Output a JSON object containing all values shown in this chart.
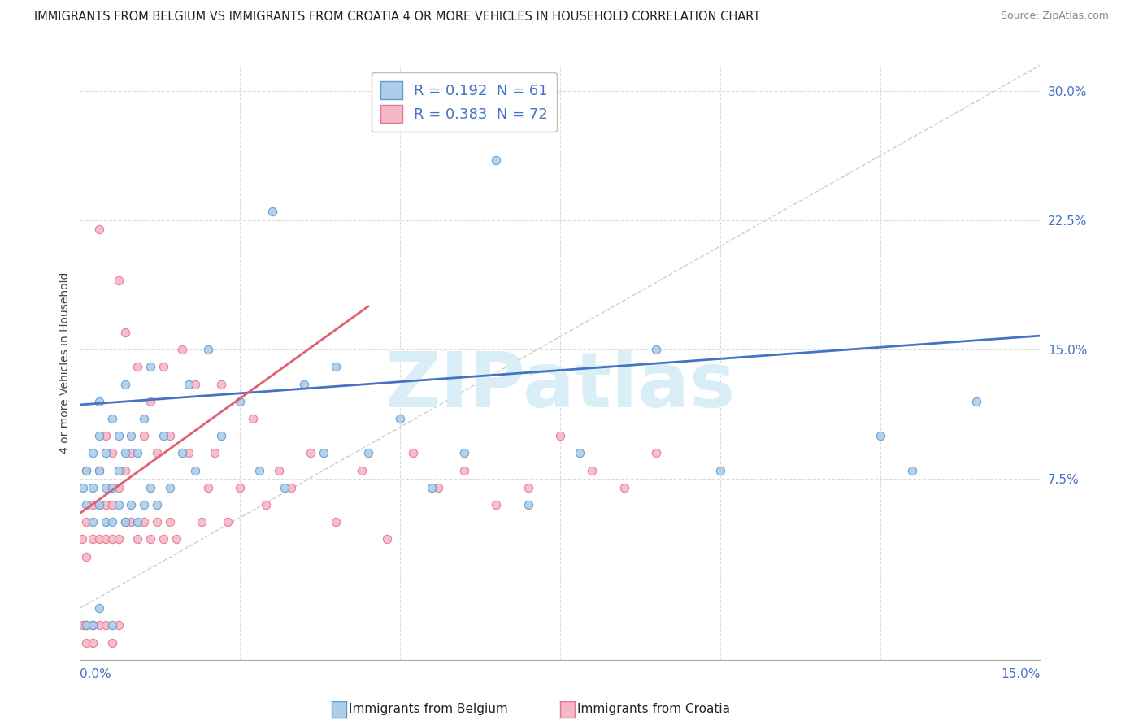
{
  "title": "IMMIGRANTS FROM BELGIUM VS IMMIGRANTS FROM CROATIA 4 OR MORE VEHICLES IN HOUSEHOLD CORRELATION CHART",
  "source": "Source: ZipAtlas.com",
  "ylabel": "4 or more Vehicles in Household",
  "y_ticks": [
    0.075,
    0.15,
    0.225,
    0.3
  ],
  "y_tick_labels": [
    "7.5%",
    "15.0%",
    "22.5%",
    "30.0%"
  ],
  "x_min": 0.0,
  "x_max": 0.15,
  "y_min": -0.03,
  "y_max": 0.315,
  "belgium_R": 0.192,
  "belgium_N": 61,
  "croatia_R": 0.383,
  "croatia_N": 72,
  "belgium_color": "#aecde8",
  "croatia_color": "#f5b8c8",
  "belgium_edge_color": "#5b9bd5",
  "croatia_edge_color": "#e8748a",
  "belgium_line_color": "#4472c4",
  "croatia_line_color": "#e06070",
  "diag_color": "#cccccc",
  "watermark_text": "ZIPatlas",
  "watermark_color": "#daeef8",
  "background_color": "#ffffff",
  "grid_color": "#dddddd",
  "belgium_trend_x0": 0.0,
  "belgium_trend_y0": 0.118,
  "belgium_trend_x1": 0.15,
  "belgium_trend_y1": 0.158,
  "croatia_trend_x0": 0.0,
  "croatia_trend_y0": 0.055,
  "croatia_trend_x1": 0.045,
  "croatia_trend_y1": 0.175,
  "belgium_scatter_x": [
    0.0005,
    0.001,
    0.001,
    0.001,
    0.002,
    0.002,
    0.002,
    0.002,
    0.003,
    0.003,
    0.003,
    0.003,
    0.003,
    0.004,
    0.004,
    0.004,
    0.005,
    0.005,
    0.005,
    0.005,
    0.006,
    0.006,
    0.006,
    0.007,
    0.007,
    0.007,
    0.008,
    0.008,
    0.009,
    0.009,
    0.01,
    0.01,
    0.011,
    0.011,
    0.012,
    0.013,
    0.014,
    0.016,
    0.017,
    0.018,
    0.02,
    0.022,
    0.025,
    0.028,
    0.03,
    0.032,
    0.035,
    0.038,
    0.04,
    0.045,
    0.05,
    0.055,
    0.06,
    0.065,
    0.07,
    0.078,
    0.09,
    0.1,
    0.125,
    0.13,
    0.14
  ],
  "belgium_scatter_y": [
    0.07,
    0.06,
    0.08,
    -0.01,
    0.05,
    0.07,
    0.09,
    -0.01,
    0.06,
    0.08,
    0.1,
    0.12,
    0.0,
    0.05,
    0.07,
    0.09,
    0.05,
    0.07,
    0.11,
    -0.01,
    0.06,
    0.08,
    0.1,
    0.05,
    0.09,
    0.13,
    0.06,
    0.1,
    0.05,
    0.09,
    0.06,
    0.11,
    0.07,
    0.14,
    0.06,
    0.1,
    0.07,
    0.09,
    0.13,
    0.08,
    0.15,
    0.1,
    0.12,
    0.08,
    0.23,
    0.07,
    0.13,
    0.09,
    0.14,
    0.09,
    0.11,
    0.07,
    0.09,
    0.26,
    0.06,
    0.09,
    0.15,
    0.08,
    0.1,
    0.08,
    0.12
  ],
  "croatia_scatter_x": [
    0.0003,
    0.0005,
    0.001,
    0.001,
    0.001,
    0.001,
    0.001,
    0.002,
    0.002,
    0.002,
    0.002,
    0.003,
    0.003,
    0.003,
    0.003,
    0.003,
    0.004,
    0.004,
    0.004,
    0.004,
    0.005,
    0.005,
    0.005,
    0.005,
    0.006,
    0.006,
    0.006,
    0.006,
    0.007,
    0.007,
    0.007,
    0.008,
    0.008,
    0.009,
    0.009,
    0.01,
    0.01,
    0.011,
    0.011,
    0.012,
    0.012,
    0.013,
    0.013,
    0.014,
    0.014,
    0.015,
    0.016,
    0.017,
    0.018,
    0.019,
    0.02,
    0.021,
    0.022,
    0.023,
    0.025,
    0.027,
    0.029,
    0.031,
    0.033,
    0.036,
    0.04,
    0.044,
    0.048,
    0.052,
    0.056,
    0.06,
    0.065,
    0.07,
    0.075,
    0.08,
    0.085,
    0.09
  ],
  "croatia_scatter_y": [
    0.04,
    -0.01,
    0.03,
    0.05,
    0.08,
    -0.01,
    -0.02,
    0.04,
    0.06,
    -0.01,
    -0.02,
    0.04,
    0.06,
    0.08,
    0.22,
    -0.01,
    0.04,
    0.06,
    0.1,
    -0.01,
    0.04,
    0.06,
    0.09,
    -0.02,
    0.04,
    0.07,
    0.19,
    -0.01,
    0.05,
    0.08,
    0.16,
    0.05,
    0.09,
    0.04,
    0.14,
    0.05,
    0.1,
    0.04,
    0.12,
    0.05,
    0.09,
    0.04,
    0.14,
    0.05,
    0.1,
    0.04,
    0.15,
    0.09,
    0.13,
    0.05,
    0.07,
    0.09,
    0.13,
    0.05,
    0.07,
    0.11,
    0.06,
    0.08,
    0.07,
    0.09,
    0.05,
    0.08,
    0.04,
    0.09,
    0.07,
    0.08,
    0.06,
    0.07,
    0.1,
    0.08,
    0.07,
    0.09
  ]
}
